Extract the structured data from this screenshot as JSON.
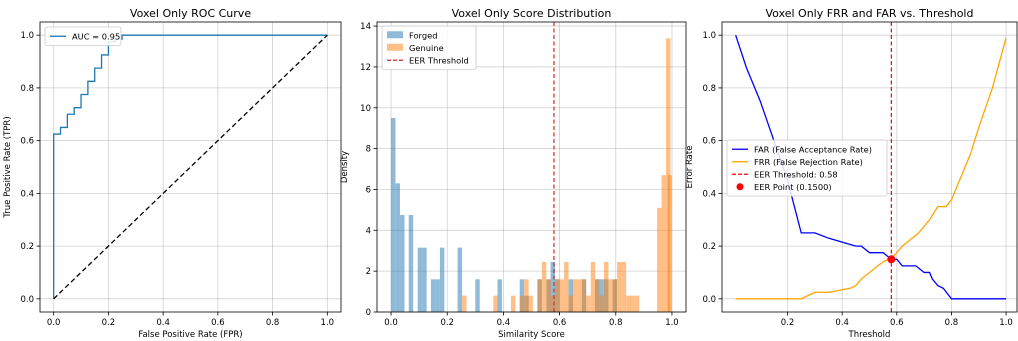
{
  "chart_data": [
    {
      "type": "line",
      "title": "Voxel Only ROC Curve",
      "xlabel": "False Positive Rate (FPR)",
      "ylabel": "True Positive Rate (TPR)",
      "xlim": [
        -0.05,
        1.05
      ],
      "ylim": [
        -0.05,
        1.05
      ],
      "xticks": [
        0.0,
        0.2,
        0.4,
        0.6,
        0.8,
        1.0
      ],
      "xtick_labels": [
        "0.0",
        "0.2",
        "0.4",
        "0.6",
        "0.8",
        "1.0"
      ],
      "yticks": [
        0.0,
        0.2,
        0.4,
        0.6,
        0.8,
        1.0
      ],
      "ytick_labels": [
        "0.0",
        "0.2",
        "0.4",
        "0.6",
        "0.8",
        "1.0"
      ],
      "grid": true,
      "legend_position": "top-left",
      "series": [
        {
          "name": "AUC = 0.95",
          "color": "#1f77b4",
          "style": "step",
          "x": [
            0.0,
            0.0,
            0.025,
            0.025,
            0.05,
            0.05,
            0.075,
            0.075,
            0.1,
            0.1,
            0.125,
            0.125,
            0.15,
            0.15,
            0.175,
            0.175,
            0.2,
            0.2,
            0.225,
            0.225,
            0.25,
            0.25,
            1.0
          ],
          "y": [
            0.0,
            0.625,
            0.625,
            0.65,
            0.65,
            0.7,
            0.7,
            0.725,
            0.725,
            0.775,
            0.775,
            0.825,
            0.825,
            0.875,
            0.875,
            0.925,
            0.925,
            0.975,
            0.975,
            0.985,
            0.985,
            1.0,
            1.0
          ]
        },
        {
          "name": "",
          "color": "#000000",
          "style": "dashed",
          "x": [
            0.0,
            1.0
          ],
          "y": [
            0.0,
            1.0
          ]
        }
      ]
    },
    {
      "type": "bar",
      "title": "Voxel Only Score Distribution",
      "xlabel": "Similarity Score",
      "ylabel": "Density",
      "xlim": [
        -0.05,
        1.05
      ],
      "ylim": [
        0,
        14.2
      ],
      "xticks": [
        0.0,
        0.2,
        0.4,
        0.6,
        0.8,
        1.0
      ],
      "xtick_labels": [
        "0.0",
        "0.2",
        "0.4",
        "0.6",
        "0.8",
        "1.0"
      ],
      "yticks": [
        0,
        2,
        4,
        6,
        8,
        10,
        12,
        14
      ],
      "ytick_labels": [
        "0",
        "2",
        "4",
        "6",
        "8",
        "10",
        "12",
        "14"
      ],
      "grid": true,
      "legend_position": "top-left",
      "bin_width": 0.0158,
      "series": [
        {
          "name": "Forged",
          "color": "#1f77b4",
          "alpha": 0.5,
          "bin_starts": [
            0.0,
            0.016,
            0.032,
            0.063,
            0.095,
            0.111,
            0.142,
            0.158,
            0.174,
            0.237,
            0.3,
            0.379,
            0.458,
            0.474,
            0.521,
            0.553,
            0.568,
            0.584,
            0.632,
            0.679,
            0.726,
            0.742,
            0.758,
            0.789
          ],
          "values": [
            9.5,
            6.3,
            4.75,
            4.75,
            3.15,
            3.15,
            1.6,
            1.6,
            3.15,
            3.15,
            1.6,
            1.6,
            1.6,
            0.8,
            1.6,
            1.6,
            2.45,
            1.6,
            1.6,
            1.6,
            1.6,
            1.6,
            1.6,
            1.6
          ]
        },
        {
          "name": "Genuine",
          "color": "#ff7f0e",
          "alpha": 0.5,
          "bin_starts": [
            0.253,
            0.364,
            0.427,
            0.458,
            0.474,
            0.489,
            0.521,
            0.537,
            0.553,
            0.568,
            0.584,
            0.6,
            0.616,
            0.632,
            0.647,
            0.663,
            0.679,
            0.695,
            0.711,
            0.726,
            0.742,
            0.758,
            0.774,
            0.789,
            0.805,
            0.821,
            0.837,
            0.852,
            0.868,
            0.947,
            0.963,
            0.979,
            0.984
          ],
          "values": [
            0.8,
            0.8,
            0.8,
            0.8,
            1.6,
            0.8,
            1.6,
            2.45,
            1.6,
            0.8,
            1.6,
            1.6,
            2.45,
            0.8,
            1.6,
            1.6,
            1.6,
            0.8,
            2.45,
            1.6,
            0.8,
            2.45,
            1.6,
            1.6,
            2.45,
            2.45,
            0.8,
            0.8,
            0.8,
            5.1,
            6.7,
            13.4,
            6.7
          ]
        }
      ],
      "threshold": {
        "name": "EER Threshold",
        "value": 0.58,
        "color": "#d62728"
      }
    },
    {
      "type": "line",
      "title": "Voxel Only FRR and FAR vs. Threshold",
      "xlabel": "Threshold",
      "ylabel": "Error Rate",
      "xlim": [
        -0.04,
        1.04
      ],
      "ylim": [
        -0.05,
        1.05
      ],
      "xticks": [
        0.2,
        0.4,
        0.6,
        0.8,
        1.0
      ],
      "xtick_labels": [
        "0.2",
        "0.4",
        "0.6",
        "0.8",
        "1.0"
      ],
      "yticks": [
        0.0,
        0.2,
        0.4,
        0.6,
        0.8,
        1.0
      ],
      "ytick_labels": [
        "0.0",
        "0.2",
        "0.4",
        "0.6",
        "0.8",
        "1.0"
      ],
      "grid": true,
      "legend_position": "center-left",
      "series": [
        {
          "name": "FAR (False Acceptance Rate)",
          "color": "#0000ff",
          "x": [
            0.01,
            0.05,
            0.1,
            0.15,
            0.2,
            0.25,
            0.3,
            0.35,
            0.4,
            0.45,
            0.47,
            0.5,
            0.53,
            0.55,
            0.58,
            0.6,
            0.62,
            0.65,
            0.67,
            0.7,
            0.72,
            0.73,
            0.75,
            0.77,
            0.8,
            0.85,
            0.9,
            1.0
          ],
          "y": [
            1.0,
            0.875,
            0.75,
            0.6,
            0.45,
            0.25,
            0.25,
            0.23,
            0.215,
            0.2,
            0.2,
            0.175,
            0.175,
            0.175,
            0.15,
            0.15,
            0.125,
            0.125,
            0.125,
            0.1,
            0.1,
            0.075,
            0.05,
            0.04,
            0.0,
            0.0,
            0.0,
            0.0
          ]
        },
        {
          "name": "FRR (False Rejection Rate)",
          "color": "#ffa500",
          "x": [
            0.01,
            0.1,
            0.2,
            0.25,
            0.28,
            0.3,
            0.35,
            0.38,
            0.4,
            0.43,
            0.45,
            0.47,
            0.5,
            0.53,
            0.55,
            0.58,
            0.6,
            0.62,
            0.65,
            0.68,
            0.7,
            0.72,
            0.75,
            0.78,
            0.8,
            0.83,
            0.87,
            0.9,
            0.95,
            1.0
          ],
          "y": [
            0.0,
            0.0,
            0.0,
            0.0,
            0.015,
            0.025,
            0.025,
            0.03,
            0.035,
            0.04,
            0.05,
            0.075,
            0.1,
            0.125,
            0.14,
            0.155,
            0.175,
            0.2,
            0.225,
            0.25,
            0.275,
            0.3,
            0.35,
            0.35,
            0.375,
            0.45,
            0.55,
            0.65,
            0.8,
            0.99
          ]
        }
      ],
      "threshold": {
        "name": "EER Threshold: 0.58",
        "value": 0.58,
        "color": "#ff0000"
      },
      "eer_point": {
        "name": "EER Point (0.1500)",
        "x": 0.58,
        "y": 0.15,
        "color": "#ff0000"
      }
    }
  ]
}
